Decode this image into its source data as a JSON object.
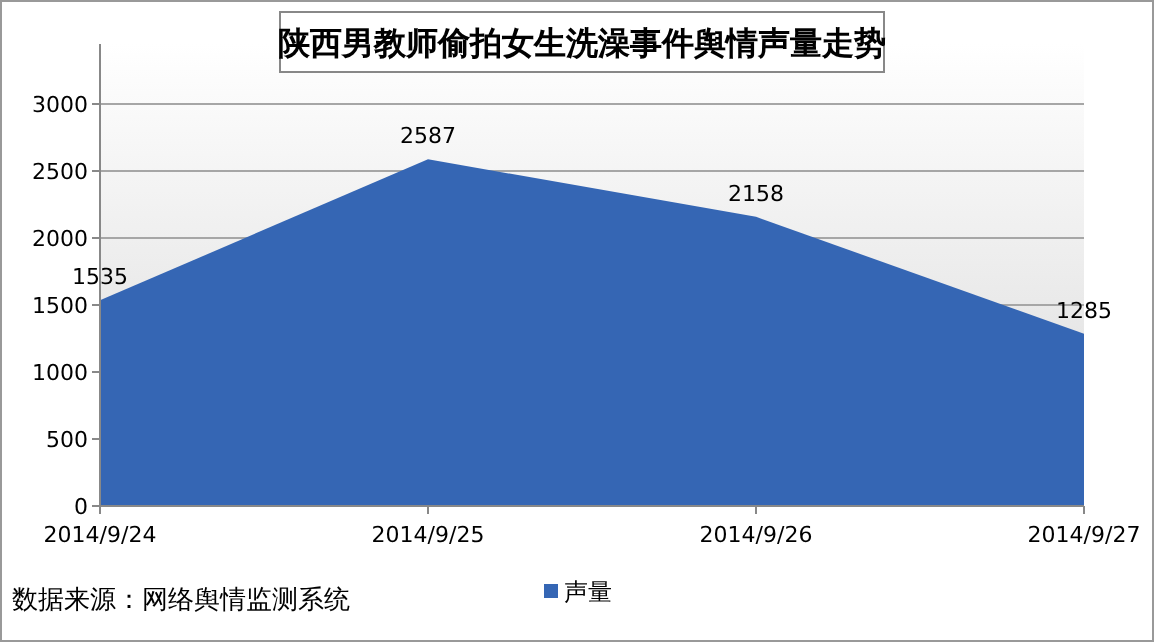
{
  "chart_data": {
    "type": "area",
    "title": "陕西男教师偷拍女生洗澡事件舆情声量走势",
    "categories": [
      "2014/9/24",
      "2014/9/25",
      "2014/9/26",
      "2014/9/27"
    ],
    "series": [
      {
        "name": "声量",
        "color": "#3566b4",
        "values": [
          1535,
          2587,
          2158,
          1285
        ]
      }
    ],
    "ylim": [
      0,
      3000
    ],
    "yticks": [
      0,
      500,
      1000,
      1500,
      2000,
      2500,
      3000
    ],
    "grid": "y",
    "legend": "bottom",
    "data_labels": true,
    "annotations": [
      "数据来源：网络舆情监测系统"
    ]
  }
}
